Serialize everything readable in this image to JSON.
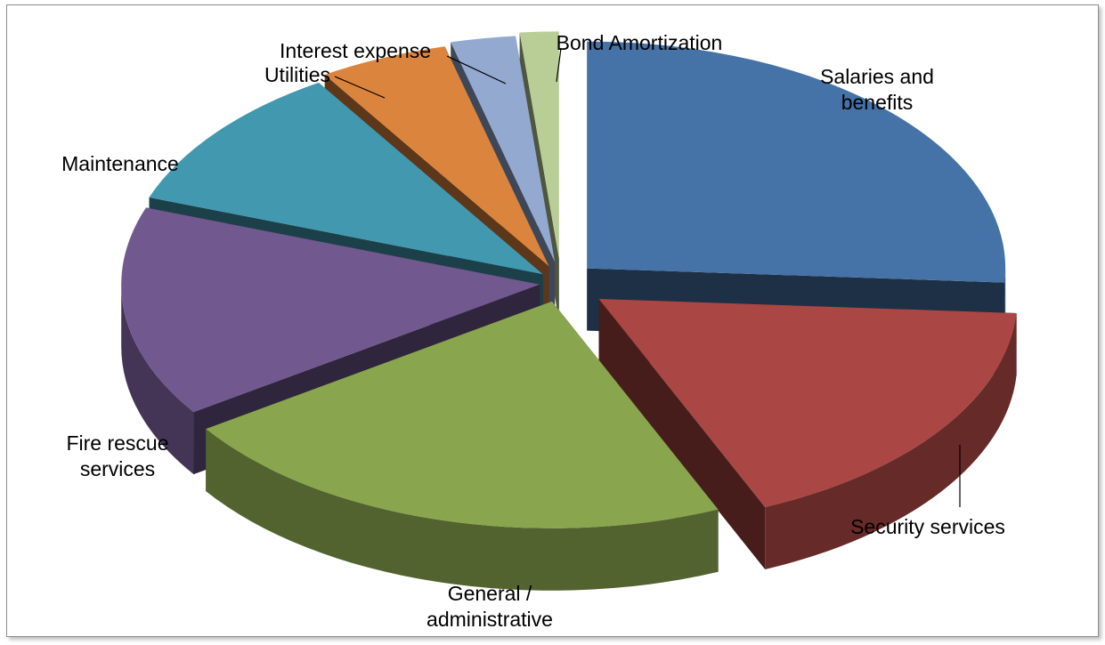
{
  "chart_data": {
    "type": "pie",
    "style": "3d-exploded",
    "title": "",
    "legend": "none",
    "unit": "percent (estimated from slice angles)",
    "categories": [
      "Salaries and benefits",
      "Security services",
      "General / administrative",
      "Fire rescue services",
      "Maintenance",
      "Utilities",
      "Interest expense",
      "Bond Amortization"
    ],
    "values": [
      26.0,
      17.5,
      22.0,
      15.0,
      10.5,
      5.0,
      2.5,
      1.5
    ],
    "colors": [
      "#4572A7",
      "#AA4643",
      "#89A54E",
      "#71588F",
      "#4198AF",
      "#DB843D",
      "#93A9CF",
      "#B9CD96"
    ],
    "labels": [
      {
        "lines": [
          "Salaries and",
          "benefits"
        ]
      },
      {
        "lines": [
          "Security services"
        ]
      },
      {
        "lines": [
          "General /",
          "administrative"
        ]
      },
      {
        "lines": [
          "Fire rescue",
          "services"
        ]
      },
      {
        "lines": [
          "Maintenance"
        ]
      },
      {
        "lines": [
          "Utilities"
        ]
      },
      {
        "lines": [
          "Interest expense"
        ]
      },
      {
        "lines": [
          "Bond Amortization"
        ]
      }
    ]
  }
}
